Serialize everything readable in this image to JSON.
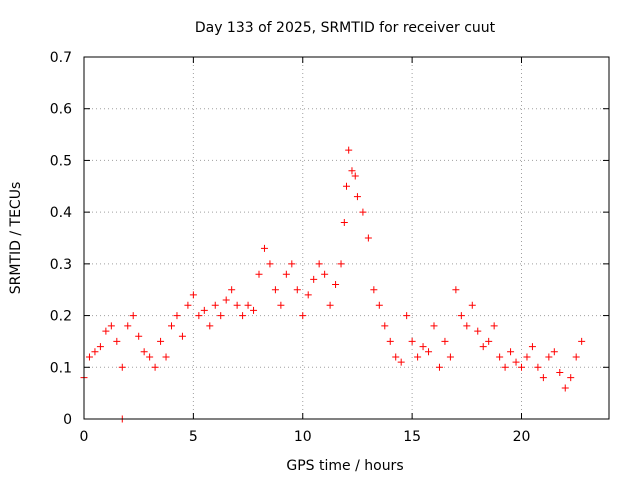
{
  "chart_data": {
    "type": "scatter",
    "title": "Day 133 of 2025, SRMTID for receiver cuut",
    "xlabel": "GPS time / hours",
    "ylabel": "SRMTID / TECUs",
    "xlim": [
      0,
      24
    ],
    "ylim": [
      0,
      0.7
    ],
    "grid": true,
    "marker": "+",
    "colors": {
      "series": "#ff0000",
      "grid": "#a0a0a0",
      "axis": "#000000"
    },
    "x_ticks": [
      {
        "value": 0,
        "label": "0"
      },
      {
        "value": 5,
        "label": "5"
      },
      {
        "value": 10,
        "label": "10"
      },
      {
        "value": 15,
        "label": "15"
      },
      {
        "value": 20,
        "label": "20"
      }
    ],
    "y_ticks": [
      {
        "value": 0,
        "label": "0"
      },
      {
        "value": 0.1,
        "label": "0.1"
      },
      {
        "value": 0.2,
        "label": "0.2"
      },
      {
        "value": 0.3,
        "label": "0.3"
      },
      {
        "value": 0.4,
        "label": "0.4"
      },
      {
        "value": 0.5,
        "label": "0.5"
      },
      {
        "value": 0.6,
        "label": "0.6"
      },
      {
        "value": 0.7,
        "label": "0.7"
      }
    ],
    "series": [
      {
        "name": "SRMTID",
        "x": [
          0.0,
          0.25,
          0.5,
          0.75,
          1.0,
          1.25,
          1.5,
          1.75,
          2.0,
          2.25,
          2.5,
          2.75,
          3.0,
          3.25,
          3.5,
          3.75,
          4.0,
          4.25,
          4.5,
          4.75,
          5.0,
          5.25,
          5.5,
          5.75,
          6.0,
          6.25,
          6.5,
          6.75,
          7.0,
          7.25,
          7.5,
          7.75,
          8.0,
          8.25,
          8.5,
          8.75,
          9.0,
          9.25,
          9.5,
          9.75,
          10.0,
          10.25,
          10.5,
          10.75,
          11.0,
          11.25,
          11.5,
          11.75,
          11.9,
          12.0,
          12.1,
          12.25,
          12.4,
          12.5,
          12.75,
          13.0,
          13.25,
          13.5,
          13.75,
          14.0,
          14.25,
          14.5,
          14.75,
          15.0,
          15.25,
          15.5,
          15.75,
          16.0,
          16.25,
          16.5,
          16.75,
          17.0,
          17.25,
          17.5,
          17.75,
          18.0,
          18.25,
          18.5,
          18.75,
          19.0,
          19.25,
          19.5,
          19.75,
          20.0,
          20.25,
          20.5,
          20.75,
          21.0,
          21.25,
          21.5,
          21.75,
          22.0,
          22.25,
          22.5,
          22.75,
          1.75
        ],
        "y": [
          0.08,
          0.12,
          0.13,
          0.14,
          0.17,
          0.18,
          0.15,
          0.1,
          0.18,
          0.2,
          0.16,
          0.13,
          0.12,
          0.1,
          0.15,
          0.12,
          0.18,
          0.2,
          0.16,
          0.22,
          0.24,
          0.2,
          0.21,
          0.18,
          0.22,
          0.2,
          0.23,
          0.25,
          0.22,
          0.2,
          0.22,
          0.21,
          0.28,
          0.33,
          0.3,
          0.25,
          0.22,
          0.28,
          0.3,
          0.25,
          0.2,
          0.24,
          0.27,
          0.3,
          0.28,
          0.22,
          0.26,
          0.3,
          0.38,
          0.45,
          0.52,
          0.48,
          0.47,
          0.43,
          0.4,
          0.35,
          0.25,
          0.22,
          0.18,
          0.15,
          0.12,
          0.11,
          0.2,
          0.15,
          0.12,
          0.14,
          0.13,
          0.18,
          0.1,
          0.15,
          0.12,
          0.25,
          0.2,
          0.18,
          0.22,
          0.17,
          0.14,
          0.15,
          0.18,
          0.12,
          0.1,
          0.13,
          0.11,
          0.1,
          0.12,
          0.14,
          0.1,
          0.08,
          0.12,
          0.13,
          0.09,
          0.06,
          0.08,
          0.12,
          0.15,
          0.0
        ]
      }
    ]
  }
}
